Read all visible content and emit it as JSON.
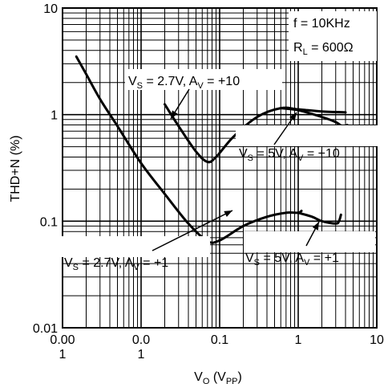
{
  "chart_data": {
    "type": "line",
    "title": "",
    "xlabel": {
      "main": "V",
      "sub": "O",
      "rest": " (V",
      "sub2": "PP",
      "end": ")"
    },
    "ylabel": "THD+N (%)",
    "x_scale": "log",
    "y_scale": "log",
    "xlim": [
      0.001,
      10
    ],
    "ylim": [
      0.01,
      10
    ],
    "grid": true,
    "x_tick_labels": [
      {
        "value": 0.001,
        "line1": "0.00",
        "line2": "1"
      },
      {
        "value": 0.01,
        "line1": "0.0",
        "line2": "1"
      },
      {
        "value": 0.1,
        "line1": "0.1",
        "line2": ""
      },
      {
        "value": 1,
        "line1": "1",
        "line2": ""
      },
      {
        "value": 10,
        "line1": "10",
        "line2": ""
      }
    ],
    "y_tick_labels": [
      {
        "value": 10,
        "label": "10"
      },
      {
        "value": 1,
        "label": "1"
      },
      {
        "value": 0.1,
        "label": "0.1"
      },
      {
        "value": 0.01,
        "label": "0.01"
      }
    ],
    "conditions": {
      "line1": "f = 10KHz",
      "line2": {
        "main": "R",
        "sub": "L",
        "rest": " = 600Ω"
      }
    },
    "series": [
      {
        "name": {
          "main": "V",
          "sub": "S",
          "mid": " = 2.7V, A",
          "sub2": "V",
          "end": " = +10"
        },
        "x": [
          0.02,
          0.03,
          0.05,
          0.07,
          0.09,
          0.15,
          0.3,
          0.6,
          1.0,
          2.0,
          4.0
        ],
        "y": [
          1.25,
          0.78,
          0.45,
          0.36,
          0.4,
          0.62,
          0.95,
          1.15,
          1.12,
          1.07,
          1.05
        ]
      },
      {
        "name": {
          "main": "V",
          "sub": "S",
          "mid": " = 5V, A",
          "sub2": "V",
          "end": " = +10"
        },
        "x": [
          0.6,
          1.0,
          2.0,
          3.0,
          4.0,
          4.2
        ],
        "y": [
          1.15,
          1.1,
          0.95,
          0.85,
          0.74,
          0.8
        ]
      },
      {
        "name": {
          "main": "V",
          "sub": "S",
          "mid": " = 2.7V, A",
          "sub2": "V",
          "end": " = +1"
        },
        "x": [
          0.0015,
          0.002,
          0.003,
          0.005,
          0.01,
          0.02,
          0.04,
          0.07,
          0.1,
          0.2,
          0.4,
          0.7,
          1.0,
          1.1
        ],
        "y": [
          3.5,
          2.4,
          1.4,
          0.78,
          0.35,
          0.18,
          0.095,
          0.065,
          0.066,
          0.09,
          0.11,
          0.12,
          0.12,
          0.125
        ]
      },
      {
        "name": {
          "main": "V",
          "sub": "S",
          "mid": " = 5V, A",
          "sub2": "V",
          "end": " = +1"
        },
        "x": [
          1.0,
          1.5,
          2.0,
          3.0,
          3.3,
          3.5
        ],
        "y": [
          0.12,
          0.11,
          0.1,
          0.095,
          0.1,
          0.115
        ]
      }
    ]
  }
}
